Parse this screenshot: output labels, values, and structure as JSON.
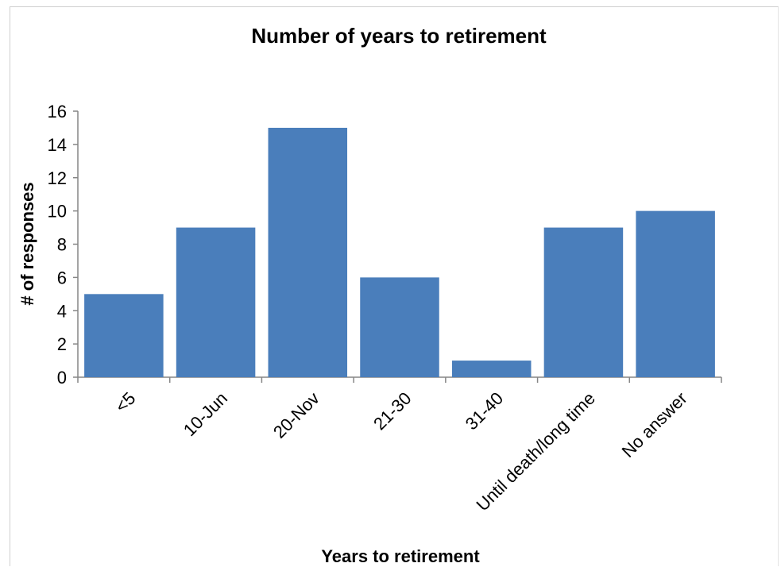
{
  "chart_data": {
    "type": "bar",
    "title": "Number of years to retirement",
    "xlabel": "Years to retirement",
    "ylabel": "# of responses",
    "categories": [
      "<5",
      "10-Jun",
      "20-Nov",
      "21-30",
      "31-40",
      "Until death/long time",
      "No answer"
    ],
    "values": [
      5,
      9,
      15,
      6,
      1,
      9,
      10
    ],
    "ylim": [
      0,
      16
    ],
    "yticks": [
      0,
      2,
      4,
      6,
      8,
      10,
      12,
      14,
      16
    ],
    "grid": false,
    "legend": "none",
    "bar_color": "#4a7ebb"
  }
}
